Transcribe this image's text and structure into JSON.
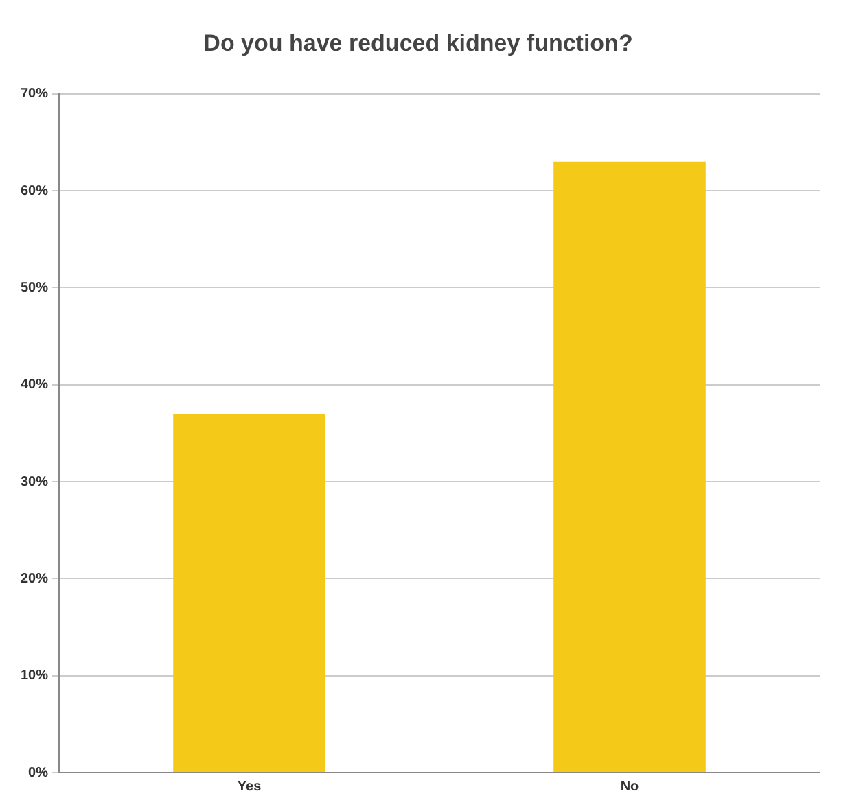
{
  "chart_data": {
    "type": "bar",
    "title": "Do you have reduced kidney function?",
    "categories": [
      "Yes",
      "No"
    ],
    "values": [
      37,
      63
    ],
    "color": "#f5c918",
    "ylim": [
      0,
      70
    ],
    "yticks": [
      {
        "value": 0,
        "label": "0%"
      },
      {
        "value": 10,
        "label": "10%"
      },
      {
        "value": 20,
        "label": "20%"
      },
      {
        "value": 30,
        "label": "30%"
      },
      {
        "value": 40,
        "label": "40%"
      },
      {
        "value": 50,
        "label": "50%"
      },
      {
        "value": 60,
        "label": "60%"
      },
      {
        "value": 70,
        "label": "70%"
      }
    ],
    "grid": "y",
    "legend": false
  }
}
